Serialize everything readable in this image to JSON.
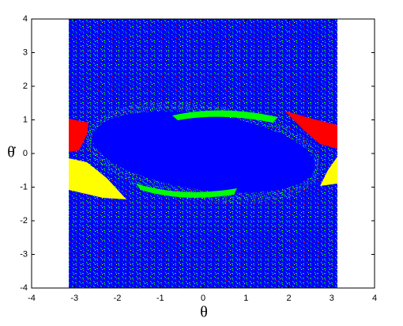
{
  "chart_data": {
    "type": "image",
    "xlabel": "θ",
    "ylabel": "θ̇",
    "xlim": [
      -4,
      4
    ],
    "ylim": [
      -4,
      4
    ],
    "xticks": [
      -4,
      -3,
      -2,
      -1,
      0,
      1,
      2,
      3,
      4
    ],
    "yticks": [
      -4,
      -3,
      -2,
      -1,
      0,
      1,
      2,
      3,
      4
    ]
  }
}
